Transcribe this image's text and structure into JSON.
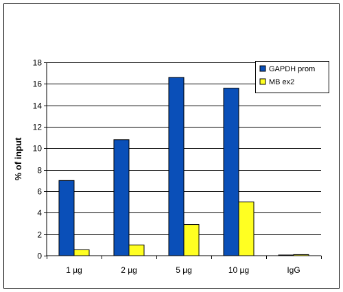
{
  "chart_data": {
    "type": "bar",
    "title": "",
    "xlabel": "",
    "ylabel": "% of input",
    "categories": [
      "1 µg",
      "2 µg",
      "5 µg",
      "10 µg",
      "IgG"
    ],
    "series": [
      {
        "name": "GAPDH prom",
        "color": "#0a4fb8",
        "values": [
          7.0,
          10.8,
          16.6,
          15.6,
          0.05
        ]
      },
      {
        "name": "MB ex2",
        "color": "#ffff22",
        "values": [
          0.55,
          1.0,
          2.9,
          5.0,
          0.1
        ]
      }
    ],
    "ylim": [
      0,
      18
    ],
    "yticks": [
      0,
      2,
      4,
      6,
      8,
      10,
      12,
      14,
      16,
      18
    ],
    "grid": true,
    "legend_position": "top-right"
  }
}
